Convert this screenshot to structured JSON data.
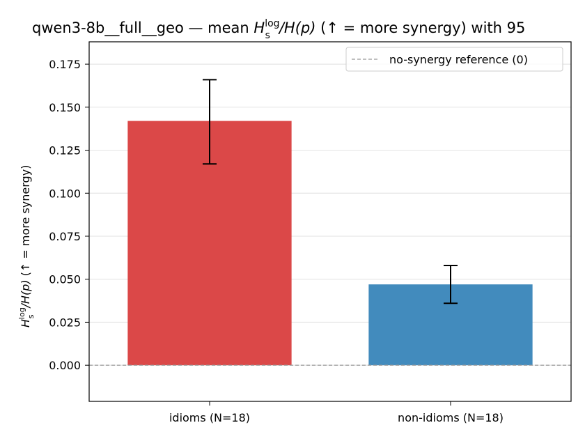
{
  "chart_data": {
    "type": "bar",
    "title_prefix": "qwen3-8b__full__geo — mean ",
    "title_suffix": "  (↑ = more synergy) with 95",
    "ylabel_suffix": "  (↑ = more synergy)",
    "ratio_label": {
      "H": "H",
      "sup": "log",
      "sub": "s",
      "rest": "/H(p)"
    },
    "categories": [
      "idioms (N=18)",
      "non-idioms (N=18)"
    ],
    "values": [
      0.142,
      0.047
    ],
    "error_low": [
      0.117,
      0.036
    ],
    "error_high": [
      0.166,
      0.058
    ],
    "colors": [
      "#db4848",
      "#428bbd"
    ],
    "ylim": [
      -0.021,
      0.188
    ],
    "yticks": [
      "0.000",
      "0.025",
      "0.050",
      "0.075",
      "0.100",
      "0.125",
      "0.150",
      "0.175"
    ],
    "grid": true,
    "reference_line": {
      "value": 0,
      "label": "no-synergy reference (0)",
      "color": "#999999"
    },
    "legend_position": "top-right"
  }
}
